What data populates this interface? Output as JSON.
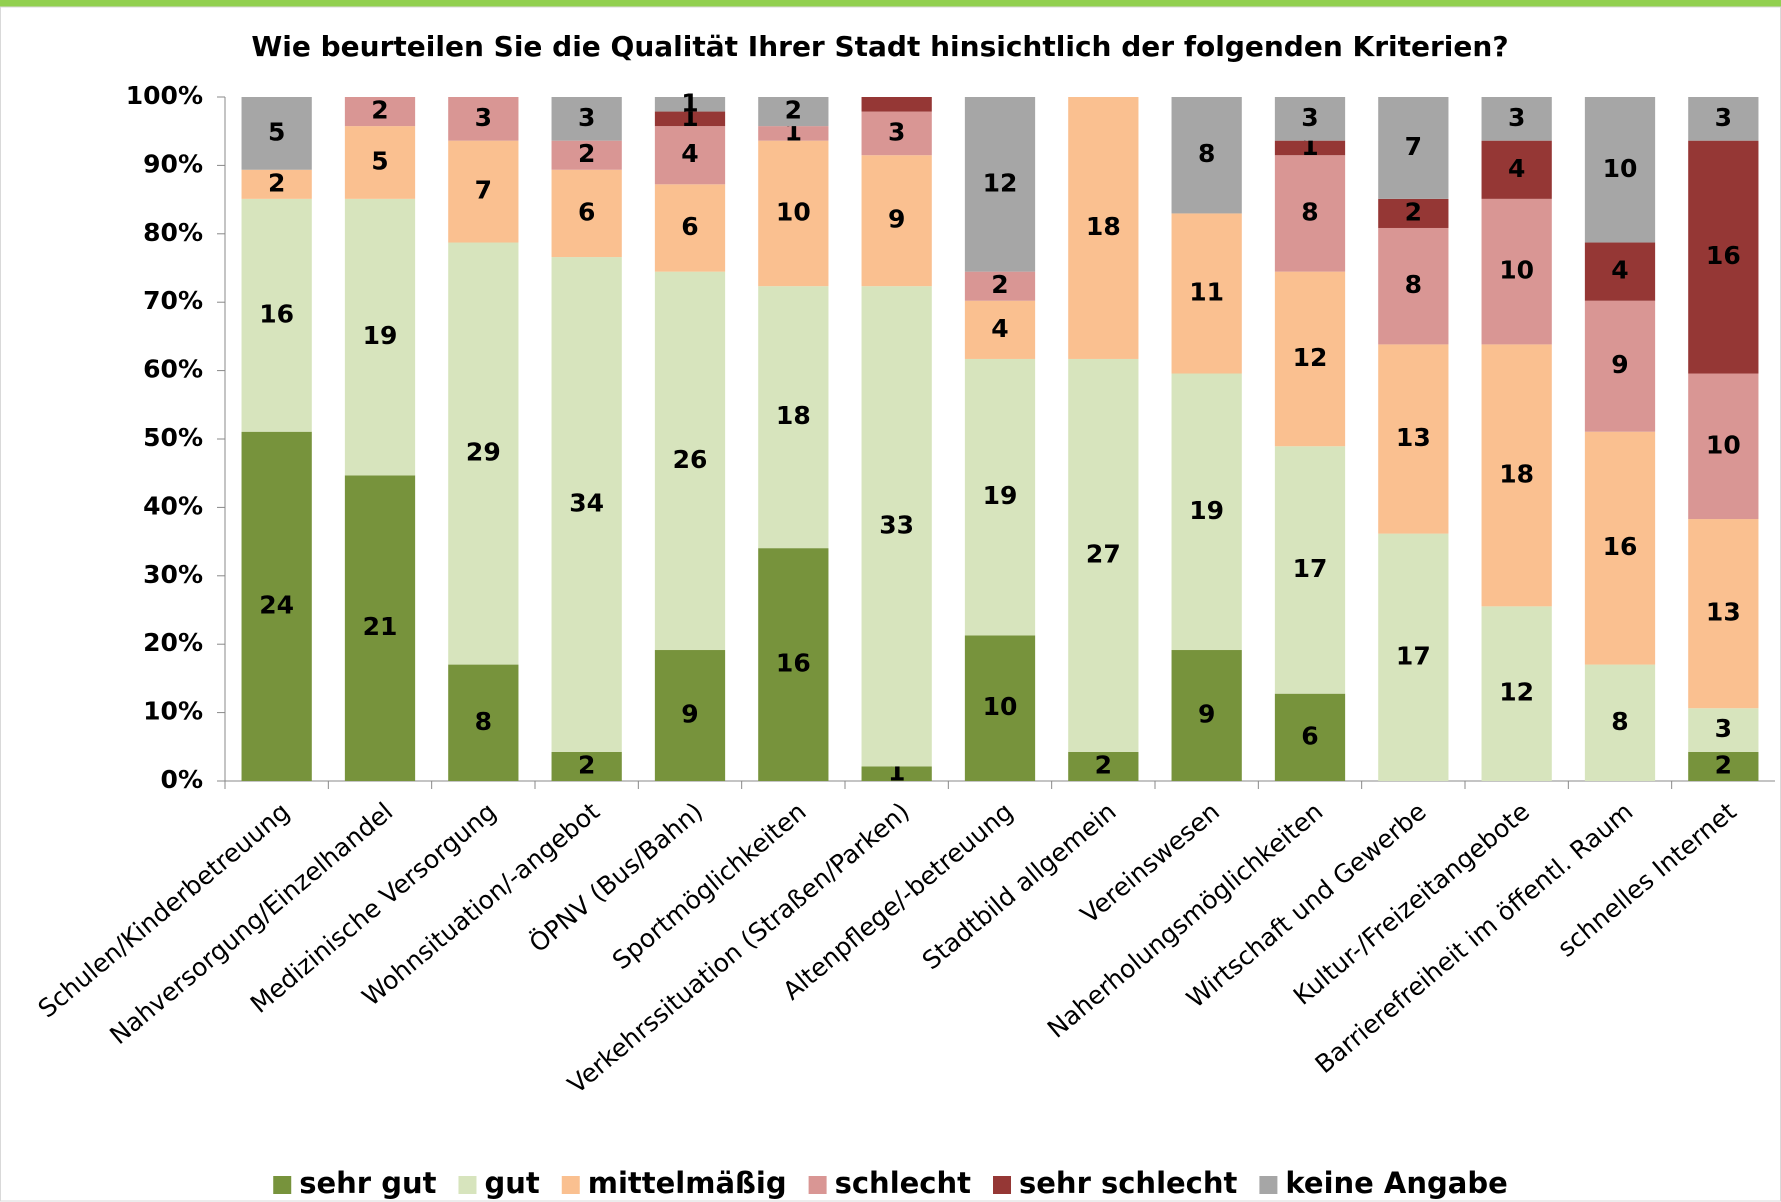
{
  "chart_data": {
    "type": "stacked_bar_percent",
    "title": "Wie beurteilen Sie die Qualität Ihrer Stadt hinsichtlich der folgenden Kriterien?",
    "categories": [
      "Schulen/Kinderbetreuung",
      "Nahversorgung/Einzelhandel",
      "Medizinische Versorgung",
      "Wohnsituation/-angebot",
      "ÖPNV (Bus/Bahn)",
      "Sportmöglichkeiten",
      "Verkehrssituation (Straßen/Parken)",
      "Altenpflege/-betreuung",
      "Stadtbild allgemein",
      "Vereinswesen",
      "Naherholungsmöglichkeiten",
      "Wirtschaft und Gewerbe",
      "Kultur-/Freizeitangebote",
      "Barrierefreiheit im öffentl. Raum",
      "schnelles Internet"
    ],
    "series": [
      {
        "name": "sehr gut",
        "color": "#77933c",
        "values": [
          24,
          21,
          8,
          2,
          9,
          16,
          1,
          10,
          2,
          9,
          6,
          0,
          0,
          0,
          2
        ]
      },
      {
        "name": "gut",
        "color": "#d7e4bd",
        "values": [
          16,
          19,
          29,
          34,
          26,
          18,
          33,
          19,
          27,
          19,
          17,
          17,
          12,
          8,
          3
        ]
      },
      {
        "name": "mittelmäßig",
        "color": "#fac090",
        "values": [
          2,
          5,
          7,
          6,
          6,
          10,
          9,
          4,
          18,
          11,
          12,
          13,
          18,
          16,
          13
        ]
      },
      {
        "name": "schlecht",
        "color": "#d99694",
        "values": [
          0,
          2,
          3,
          2,
          4,
          1,
          3,
          2,
          0,
          0,
          8,
          8,
          10,
          9,
          10
        ]
      },
      {
        "name": "sehr schlecht",
        "color": "#953735",
        "values": [
          0,
          0,
          0,
          0,
          1,
          0,
          1,
          0,
          0,
          0,
          1,
          2,
          4,
          4,
          16
        ],
        "value_labels": [
          null,
          null,
          null,
          null,
          "1",
          null,
          null,
          null,
          null,
          null,
          "1",
          "2",
          "4",
          "4",
          "16"
        ]
      },
      {
        "name": "keine Angabe",
        "color": "#a6a6a6",
        "values": [
          5,
          0,
          0,
          3,
          1,
          2,
          0,
          12,
          0,
          8,
          3,
          7,
          3,
          10,
          3
        ]
      }
    ],
    "ylim": [
      0,
      100
    ],
    "yticks": [
      {
        "value": 0,
        "label": "0%"
      },
      {
        "value": 10,
        "label": "10%"
      },
      {
        "value": 20,
        "label": "20%"
      },
      {
        "value": 30,
        "label": "30%"
      },
      {
        "value": 40,
        "label": "40%"
      },
      {
        "value": 50,
        "label": "50%"
      },
      {
        "value": 60,
        "label": "60%"
      },
      {
        "value": 70,
        "label": "70%"
      },
      {
        "value": 80,
        "label": "80%"
      },
      {
        "value": 90,
        "label": "90%"
      },
      {
        "value": 100,
        "label": "100%"
      }
    ],
    "grid": false,
    "legend": "bottom"
  }
}
